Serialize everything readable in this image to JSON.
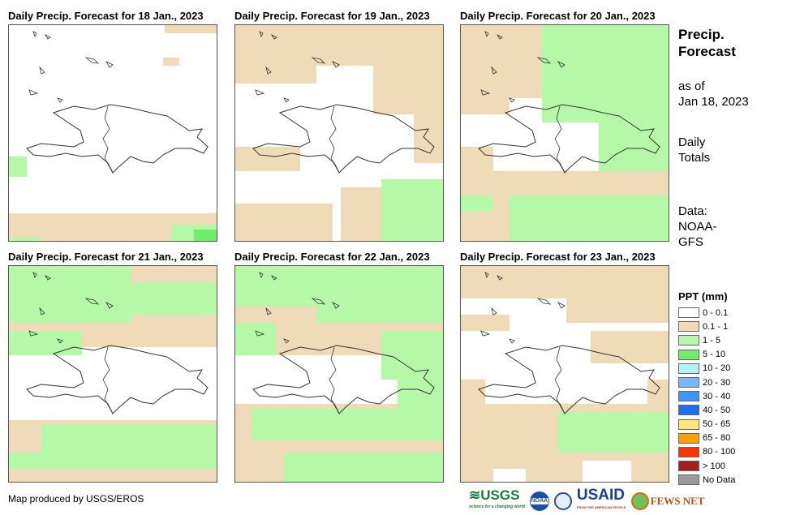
{
  "panels": [
    {
      "title": "Daily Precip. Forecast for 18 Jan., 2023"
    },
    {
      "title": "Daily Precip. Forecast for 19 Jan., 2023"
    },
    {
      "title": "Daily Precip. Forecast for 20 Jan., 2023"
    },
    {
      "title": "Daily Precip. Forecast for 21 Jan., 2023"
    },
    {
      "title": "Daily Precip. Forecast for 22 Jan., 2023"
    },
    {
      "title": "Daily Precip. Forecast for 23 Jan., 2023"
    }
  ],
  "side": {
    "title1": "Precip.",
    "title2": "Forecast",
    "asof1": "as of",
    "asof2": "Jan 18, 2023",
    "daily1": "Daily",
    "daily2": "Totals",
    "data1": "Data:",
    "data2": "NOAA-",
    "data3": "GFS"
  },
  "legend": {
    "title": "PPT (mm)",
    "items": [
      {
        "label": "0 - 0.1",
        "color": "#ffffff"
      },
      {
        "label": "0.1 - 1",
        "color": "#f0dbb8"
      },
      {
        "label": "1 - 5",
        "color": "#b4f8a8"
      },
      {
        "label": "5 - 10",
        "color": "#70ee6a"
      },
      {
        "label": "10 - 20",
        "color": "#b2f2f8"
      },
      {
        "label": "20 - 30",
        "color": "#78b8f8"
      },
      {
        "label": "30 - 40",
        "color": "#3c96f4"
      },
      {
        "label": "40 - 50",
        "color": "#1e6ef0"
      },
      {
        "label": "50 - 65",
        "color": "#ffe67a"
      },
      {
        "label": "65 - 80",
        "color": "#ffa000"
      },
      {
        "label": "80 - 100",
        "color": "#ff3200"
      },
      {
        "label": "> 100",
        "color": "#a01e1e"
      },
      {
        "label": "No Data",
        "color": "#9a9a9a"
      }
    ]
  },
  "credit": "Map produced by USGS/EROS",
  "logos": {
    "usgs": "USGS",
    "usgs_tag": "science for a changing world",
    "noaa": "NOAA",
    "usaid": "USAID",
    "usaid_tag": "FROM THE AMERICAN PEOPLE",
    "fews": "FEWS NET"
  }
}
